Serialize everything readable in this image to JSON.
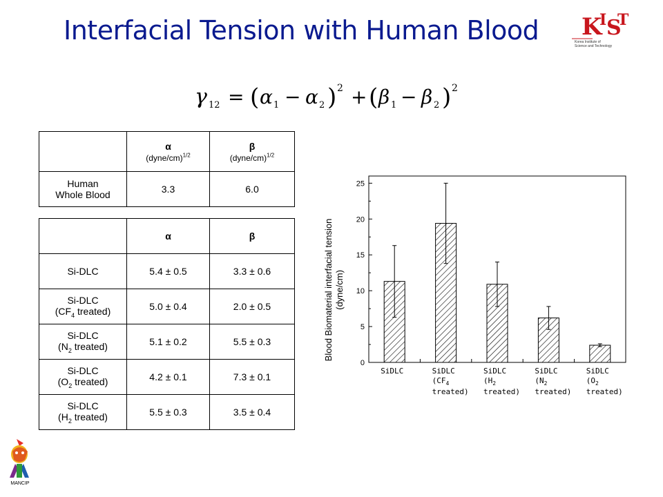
{
  "page": {
    "title": "Interfacial Tension with Human Blood",
    "logo": {
      "text": "KIST",
      "subtitle": "Korea Institute of Science and Technology"
    },
    "mascot_label": "MANCIP"
  },
  "table1": {
    "headers": {
      "alpha": "α",
      "alpha_unit": "(dyne/cm)",
      "alpha_exp": "1/2",
      "beta": "β",
      "beta_unit": "(dyne/cm)",
      "beta_exp": "1/2"
    },
    "row": {
      "label_line1": "Human",
      "label_line2": "Whole Blood",
      "alpha": "3.3",
      "beta": "6.0"
    }
  },
  "table2": {
    "headers": {
      "alpha": "α",
      "beta": "β"
    },
    "rows": [
      {
        "l1": "Si-DLC",
        "l2": "",
        "alpha": "5.4 ± 0.5",
        "beta": "3.3 ± 0.6"
      },
      {
        "l1": "Si-DLC",
        "l2a": "(CF",
        "sub": "4",
        "l2b": " treated)",
        "alpha": "5.0 ± 0.4",
        "beta": "2.0 ± 0.5"
      },
      {
        "l1": "Si-DLC",
        "l2a": "(N",
        "sub": "2",
        "l2b": " treated)",
        "alpha": "5.1 ± 0.2",
        "beta": "5.5 ± 0.3"
      },
      {
        "l1": "Si-DLC",
        "l2a": "(O",
        "sub": "2",
        "l2b": " treated)",
        "alpha": "4.2 ± 0.1",
        "beta": "7.3 ± 0.1"
      },
      {
        "l1": "Si-DLC",
        "l2a": "(H",
        "sub": "2",
        "l2b": " treated)",
        "alpha": "5.5 ± 0.3",
        "beta": "3.5 ± 0.4"
      }
    ]
  },
  "chart_data": {
    "type": "bar",
    "ylabel_line1": "Blood Biomaterial interfacial tension",
    "ylabel_line2": "(dyne/cm)",
    "ylim": [
      0,
      26
    ],
    "yticks": [
      "0",
      "5",
      "10",
      "15",
      "20",
      "25"
    ],
    "categories": [
      {
        "l1": "SiDLC",
        "l2": "",
        "l3": ""
      },
      {
        "l1": "SiDLC",
        "l2": "(CF",
        "sub": "4",
        "l3": "treated)"
      },
      {
        "l1": "SiDLC",
        "l2": "(H",
        "sub": "2",
        "l3": "treated)"
      },
      {
        "l1": "SiDLC",
        "l2": "(N",
        "sub": "2",
        "l3": "treated)"
      },
      {
        "l1": "SiDLC",
        "l2": "(O",
        "sub": "2",
        "l3": "treated)"
      }
    ],
    "values": [
      11.3,
      19.4,
      10.9,
      6.2,
      2.4
    ],
    "errors": [
      5.0,
      5.6,
      3.1,
      1.6,
      0.2
    ],
    "grid": false,
    "pattern": "diagonal-hatch"
  }
}
